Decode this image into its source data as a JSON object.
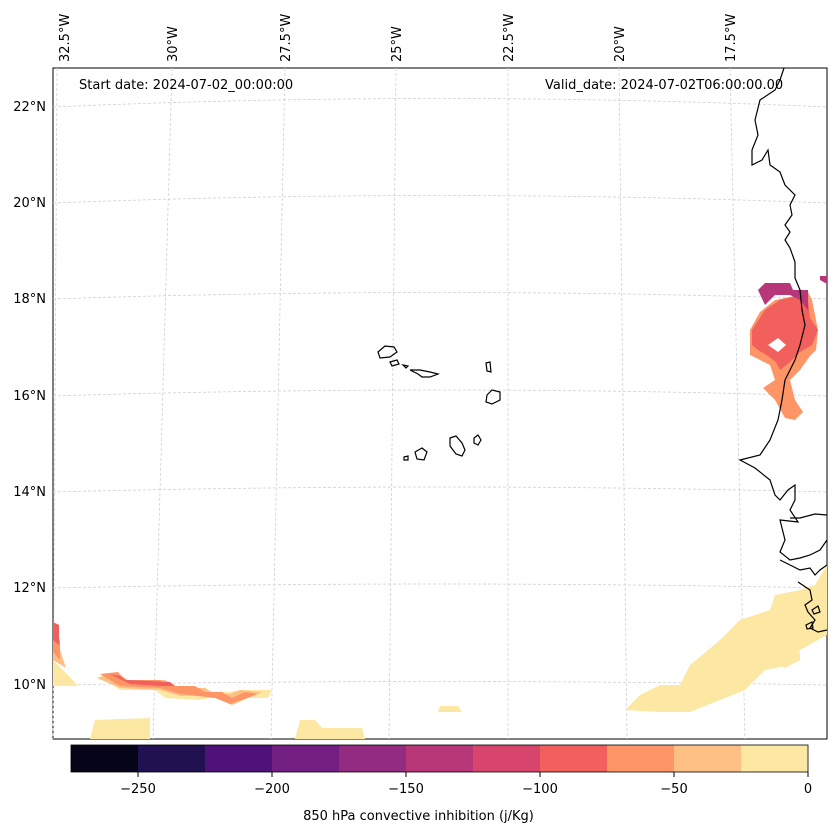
{
  "header": {
    "start_date": "Start date: 2024-07-02_00:00:00",
    "valid_date": "Valid_date: 2024-07-02T06:00:00.00"
  },
  "map": {
    "lon_labels": [
      "32.5°W",
      "30°W",
      "27.5°W",
      "25°W",
      "22.5°W",
      "20°W",
      "17.5°W"
    ],
    "lat_labels": [
      "22°N",
      "20°N",
      "18°N",
      "16°N",
      "14°N",
      "12°N",
      "10°N"
    ],
    "gridlines": true,
    "coastline_color": "#000000"
  },
  "colorbar": {
    "title": "850 hPa convective inhibition (j/Kg)",
    "tick_labels": [
      "−250",
      "−200",
      "−150",
      "−100",
      "−50",
      "0"
    ],
    "levels": [
      -275,
      -250,
      -225,
      -200,
      -175,
      -150,
      -125,
      -100,
      -75,
      -50,
      -25,
      0
    ],
    "colors": [
      "#050418",
      "#221150",
      "#4f127b",
      "#721f81",
      "#932b80",
      "#b73779",
      "#d8456c",
      "#f1605d",
      "#fd9567",
      "#febf84",
      "#fce8a3"
    ]
  }
}
